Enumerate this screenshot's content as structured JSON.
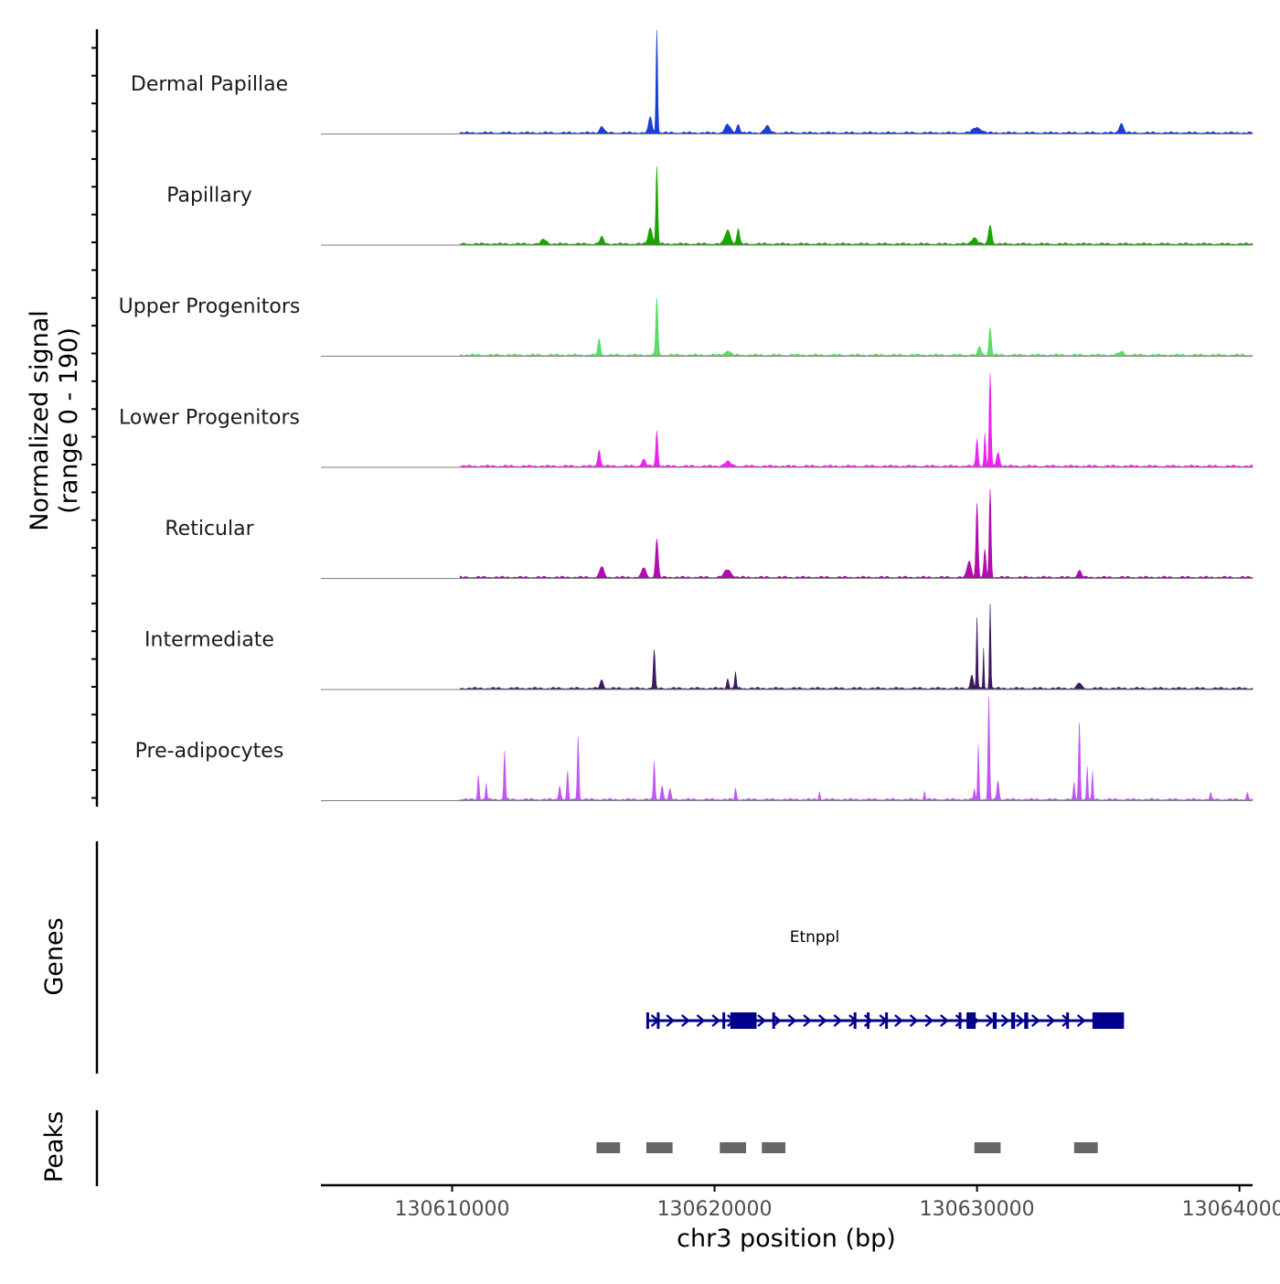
{
  "chart_data": {
    "type": "area",
    "title": "",
    "chromosome": "chr3",
    "xlabel": "chr3 position (bp)",
    "xlim": [
      130605000,
      130640500
    ],
    "xticks": [
      130610000,
      130620000,
      130630000,
      130640000
    ],
    "xtick_labels": [
      "130610000",
      "130620000",
      "130630000",
      "130640000"
    ],
    "signal_panel": {
      "ylabel_line1": "Normalized signal",
      "ylabel_line2": "(range 0 - 190)",
      "range": [
        0,
        190
      ],
      "tracks": [
        {
          "name": "Dermal Papillae",
          "color": "#1a3ed6",
          "peaks": [
            [
              130617800,
              190,
              60
            ],
            [
              130617550,
              30,
              120
            ],
            [
              130620500,
              15,
              200
            ],
            [
              130620900,
              16,
              120
            ],
            [
              130622000,
              12,
              200
            ],
            [
              130630000,
              10,
              300
            ],
            [
              130635500,
              18,
              150
            ],
            [
              130615700,
              12,
              150
            ]
          ]
        },
        {
          "name": "Papillary",
          "color": "#1ba300",
          "peaks": [
            [
              130617800,
              140,
              70
            ],
            [
              130617550,
              30,
              150
            ],
            [
              130620500,
              25,
              200
            ],
            [
              130620900,
              28,
              100
            ],
            [
              130630500,
              35,
              120
            ],
            [
              130629900,
              12,
              200
            ],
            [
              130615700,
              12,
              150
            ],
            [
              130613500,
              8,
              200
            ]
          ]
        },
        {
          "name": "Upper Progenitors",
          "color": "#5adc6a",
          "peaks": [
            [
              130617800,
              105,
              80
            ],
            [
              130615600,
              28,
              100
            ],
            [
              130630500,
              50,
              90
            ],
            [
              130630100,
              15,
              120
            ],
            [
              130620500,
              8,
              200
            ],
            [
              130635500,
              6,
              200
            ]
          ]
        },
        {
          "name": "Lower Progenitors",
          "color": "#ee22ee",
          "peaks": [
            [
              130617800,
              65,
              80
            ],
            [
              130615600,
              30,
              100
            ],
            [
              130630500,
              170,
              70
            ],
            [
              130630000,
              50,
              80
            ],
            [
              130630300,
              60,
              60
            ],
            [
              130630800,
              25,
              120
            ],
            [
              130620500,
              8,
              250
            ],
            [
              130617300,
              12,
              150
            ]
          ]
        },
        {
          "name": "Reticular",
          "color": "#b00cb0",
          "peaks": [
            [
              130617800,
              70,
              100
            ],
            [
              130615700,
              20,
              150
            ],
            [
              130630500,
              160,
              70
            ],
            [
              130630000,
              135,
              80
            ],
            [
              130630300,
              50,
              80
            ],
            [
              130629700,
              30,
              150
            ],
            [
              130620500,
              14,
              250
            ],
            [
              130633900,
              12,
              150
            ],
            [
              130617300,
              18,
              150
            ]
          ]
        },
        {
          "name": "Intermediate",
          "color": "#3b1a5e",
          "peaks": [
            [
              130617700,
              70,
              70
            ],
            [
              130620800,
              30,
              60
            ],
            [
              130620500,
              18,
              80
            ],
            [
              130630500,
              155,
              50
            ],
            [
              130630000,
              130,
              50
            ],
            [
              130630250,
              75,
              40
            ],
            [
              130629800,
              25,
              100
            ],
            [
              130615700,
              15,
              120
            ],
            [
              130633900,
              10,
              150
            ]
          ]
        },
        {
          "name": "Pre-adipocytes",
          "color": "#c058f0",
          "peaks": [
            [
              130612000,
              90,
              60
            ],
            [
              130611000,
              45,
              60
            ],
            [
              130611300,
              30,
              50
            ],
            [
              130614800,
              115,
              60
            ],
            [
              130614400,
              50,
              60
            ],
            [
              130614100,
              25,
              80
            ],
            [
              130617700,
              70,
              60
            ],
            [
              130618000,
              25,
              80
            ],
            [
              130618300,
              18,
              80
            ],
            [
              130620800,
              20,
              60
            ],
            [
              130630450,
              190,
              60
            ],
            [
              130630050,
              100,
              50
            ],
            [
              130630800,
              35,
              80
            ],
            [
              130633900,
              140,
              60
            ],
            [
              130634200,
              60,
              50
            ],
            [
              130634400,
              50,
              50
            ],
            [
              130633700,
              30,
              60
            ],
            [
              130629900,
              20,
              60
            ],
            [
              130624000,
              15,
              50
            ],
            [
              130628000,
              15,
              50
            ],
            [
              130638900,
              12,
              60
            ],
            [
              130640300,
              12,
              60
            ]
          ]
        }
      ]
    },
    "genes_panel": {
      "ylabel": "Genes",
      "gene_name": "Etnppl",
      "strand": "+",
      "start": 130617400,
      "end": 130635600,
      "color": "#00008b",
      "exons": [
        [
          130617400,
          130617450
        ],
        [
          130617800,
          130617900
        ],
        [
          130620300,
          130620350
        ],
        [
          130620600,
          130621600
        ],
        [
          130622200,
          130622250
        ],
        [
          130625300,
          130625350
        ],
        [
          130625800,
          130625850
        ],
        [
          130626500,
          130626550
        ],
        [
          130629300,
          130629350
        ],
        [
          130629600,
          130629950
        ],
        [
          130630600,
          130630750
        ],
        [
          130631300,
          130631450
        ],
        [
          130631800,
          130631950
        ],
        [
          130633400,
          130633450
        ],
        [
          130634400,
          130635600
        ]
      ]
    },
    "peaks_panel": {
      "ylabel": "Peaks",
      "color": "#666666",
      "regions": [
        [
          130615500,
          130616400
        ],
        [
          130617400,
          130618400
        ],
        [
          130620200,
          130621200
        ],
        [
          130621800,
          130622700
        ],
        [
          130629900,
          130630900
        ],
        [
          130633700,
          130634600
        ]
      ]
    }
  }
}
